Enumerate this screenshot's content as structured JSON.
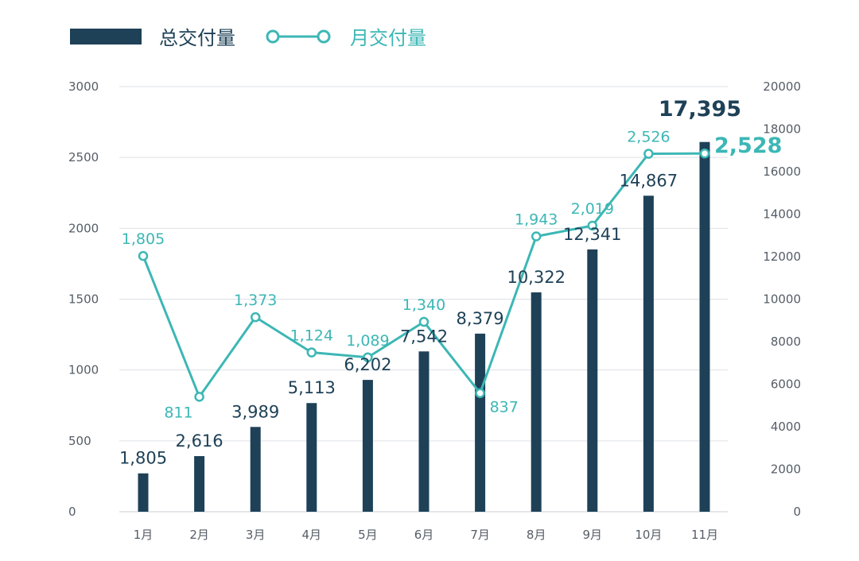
{
  "chart_data": {
    "type": "bar",
    "categories": [
      "1月",
      "2月",
      "3月",
      "4月",
      "5月",
      "6月",
      "7月",
      "8月",
      "9月",
      "10月",
      "11月"
    ],
    "series": [
      {
        "name": "总交付量",
        "type": "bar",
        "axis": "right",
        "values": [
          1805,
          2616,
          3989,
          5113,
          6202,
          7542,
          8379,
          10322,
          12341,
          14867,
          17395
        ],
        "labels": [
          "1,805",
          "2,616",
          "3,989",
          "5,113",
          "6,202",
          "7,542",
          "8,379",
          "10,322",
          "12,341",
          "14,867",
          "17,395"
        ],
        "color": "#1e4157"
      },
      {
        "name": "月交付量",
        "type": "line",
        "axis": "left",
        "values": [
          1805,
          811,
          1373,
          1124,
          1089,
          1340,
          837,
          1943,
          2019,
          2526,
          2528
        ],
        "labels": [
          "1,805",
          "811",
          "1,373",
          "1,124",
          "1,089",
          "1,340",
          "837",
          "1,943",
          "2,019",
          "2,526",
          "2,528"
        ],
        "color": "#3cb7b5"
      }
    ],
    "y_left": {
      "lim": [
        0,
        3000
      ],
      "ticks": [
        "0",
        "500",
        "1000",
        "1500",
        "2000",
        "2500",
        "3000"
      ]
    },
    "y_right": {
      "lim": [
        0,
        20000
      ],
      "ticks": [
        "0",
        "2000",
        "4000",
        "6000",
        "8000",
        "10000",
        "12000",
        "14000",
        "16000",
        "18000",
        "20000"
      ]
    },
    "grid": true,
    "legend": {
      "position": "top-left"
    }
  }
}
